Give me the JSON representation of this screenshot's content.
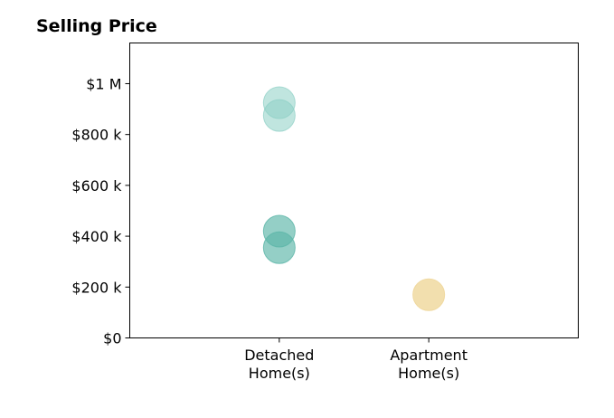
{
  "chart_data": {
    "type": "scatter",
    "title": "Selling Price",
    "xlabel": "",
    "ylabel": "",
    "categories": [
      [
        "Detached",
        "Home(s)"
      ],
      [
        "Apartment",
        "Home(s)"
      ]
    ],
    "y_ticks": [
      {
        "value": 0,
        "label": "$0"
      },
      {
        "value": 200000,
        "label": "$200 k"
      },
      {
        "value": 400000,
        "label": "$400 k"
      },
      {
        "value": 600000,
        "label": "$600 k"
      },
      {
        "value": 800000,
        "label": "$800 k"
      },
      {
        "value": 1000000,
        "label": "$1 M"
      }
    ],
    "ylim": [
      0,
      1160000
    ],
    "xlim": [
      -1,
      2
    ],
    "grid": false,
    "points": [
      {
        "category": 0,
        "value": 925000,
        "color": "#8ccfc5",
        "opacity": 0.55
      },
      {
        "category": 0,
        "value": 875000,
        "color": "#8ccfc5",
        "opacity": 0.55
      },
      {
        "category": 0,
        "value": 420000,
        "color": "#5bb5a8",
        "opacity": 0.65
      },
      {
        "category": 0,
        "value": 355000,
        "color": "#5bb5a8",
        "opacity": 0.65
      },
      {
        "category": 1,
        "value": 170000,
        "color": "#f0d9a0",
        "opacity": 0.85
      }
    ]
  }
}
